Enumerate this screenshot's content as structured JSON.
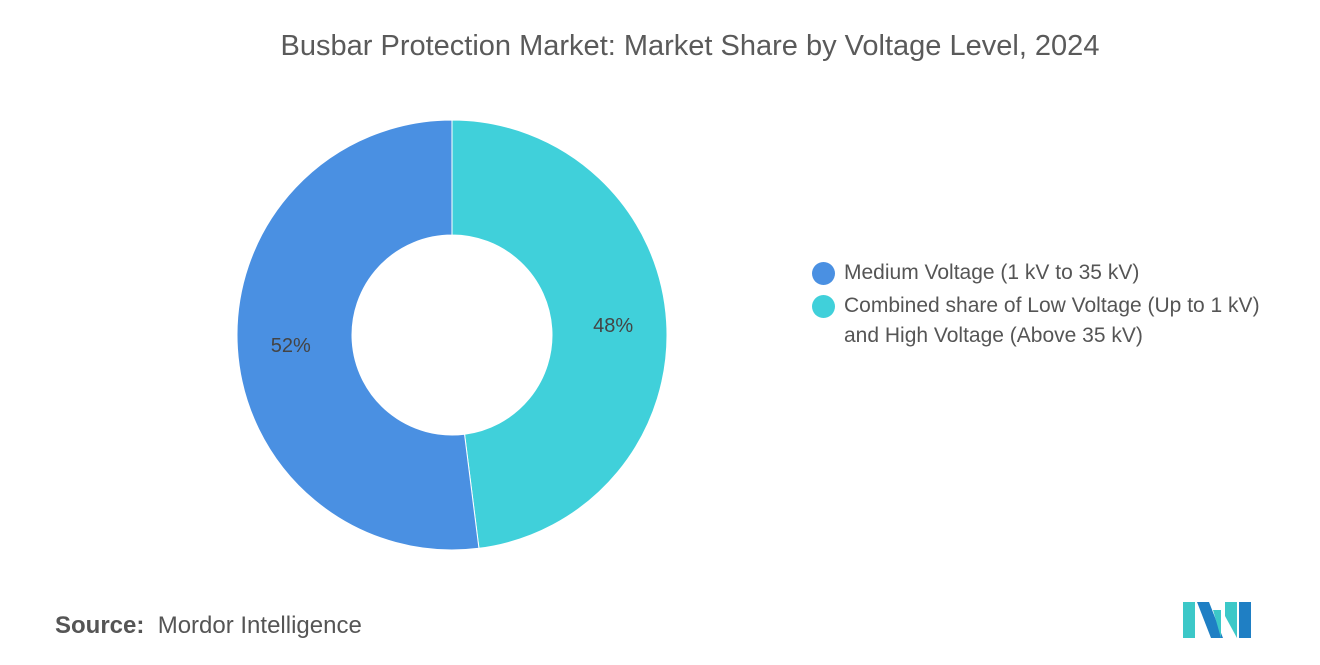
{
  "title": "Busbar Protection Market: Market Share by Voltage Level, 2024",
  "chart_data": {
    "type": "pie",
    "donut": true,
    "title": "Busbar Protection Market: Market Share by Voltage Level, 2024",
    "legend_position": "right",
    "series": [
      {
        "name": "Combined share of Low Voltage (Up to 1 kV) and High Voltage (Above 35 kV)",
        "value": 48,
        "label": "48%",
        "color": "#40d0da"
      },
      {
        "name": "Medium Voltage (1 kV to 35 kV)",
        "value": 52,
        "label": "52%",
        "color": "#4a90e2"
      }
    ]
  },
  "legend": [
    {
      "label": "Medium Voltage (1 kV to 35 kV)",
      "color": "#4a90e2"
    },
    {
      "label": "Combined share of Low Voltage (Up to 1 kV) and High Voltage (Above 35 kV)",
      "color": "#40d0da"
    }
  ],
  "source": {
    "label": "Source:",
    "value": "Mordor Intelligence"
  },
  "logo": {
    "name": "mordor-intelligence-logo",
    "colors": [
      "#1f7fc4",
      "#3cc8c8"
    ]
  }
}
